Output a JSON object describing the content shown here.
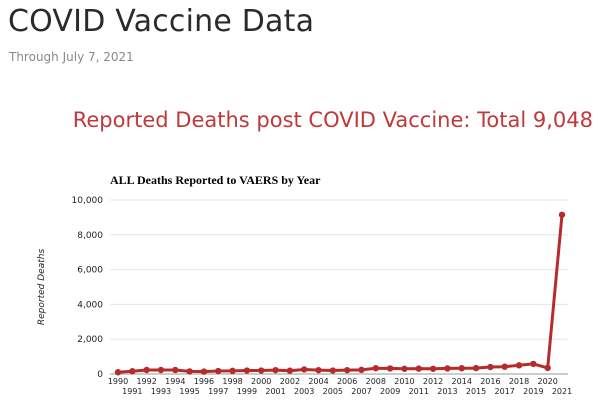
{
  "page": {
    "title": "COVID Vaccine Data",
    "subtitle": "Through July 7, 2021",
    "headline": "Reported Deaths post COVID Vaccine: Total 9,048"
  },
  "colors": {
    "series": "#b62b2b",
    "headline": "#c0393a",
    "grid": "#e6e6e6"
  },
  "chart_data": {
    "type": "line",
    "title": "ALL Deaths Reported to VAERS by Year",
    "xlabel": "",
    "ylabel": "Reported Deaths",
    "ylim": [
      0,
      10000
    ],
    "yticks": [
      0,
      2000,
      4000,
      6000,
      8000,
      10000
    ],
    "ytick_labels": [
      "0",
      "2,000",
      "4,000",
      "6,000",
      "8,000",
      "10,000"
    ],
    "grid": true,
    "legend": "none",
    "x": [
      "1990",
      "1991",
      "1992",
      "1993",
      "1994",
      "1995",
      "1996",
      "1997",
      "1998",
      "1999",
      "2000",
      "2001",
      "2002",
      "2003",
      "2004",
      "2005",
      "2006",
      "2007",
      "2008",
      "2009",
      "2010",
      "2011",
      "2012",
      "2013",
      "2014",
      "2015",
      "2016",
      "2017",
      "2018",
      "2019",
      "2020",
      "2021"
    ],
    "series": [
      {
        "values": [
          100,
          160,
          230,
          230,
          230,
          150,
          140,
          170,
          180,
          200,
          200,
          220,
          190,
          260,
          220,
          200,
          220,
          240,
          330,
          320,
          300,
          310,
          300,
          320,
          330,
          340,
          400,
          420,
          500,
          580,
          350,
          9150
        ]
      }
    ]
  }
}
